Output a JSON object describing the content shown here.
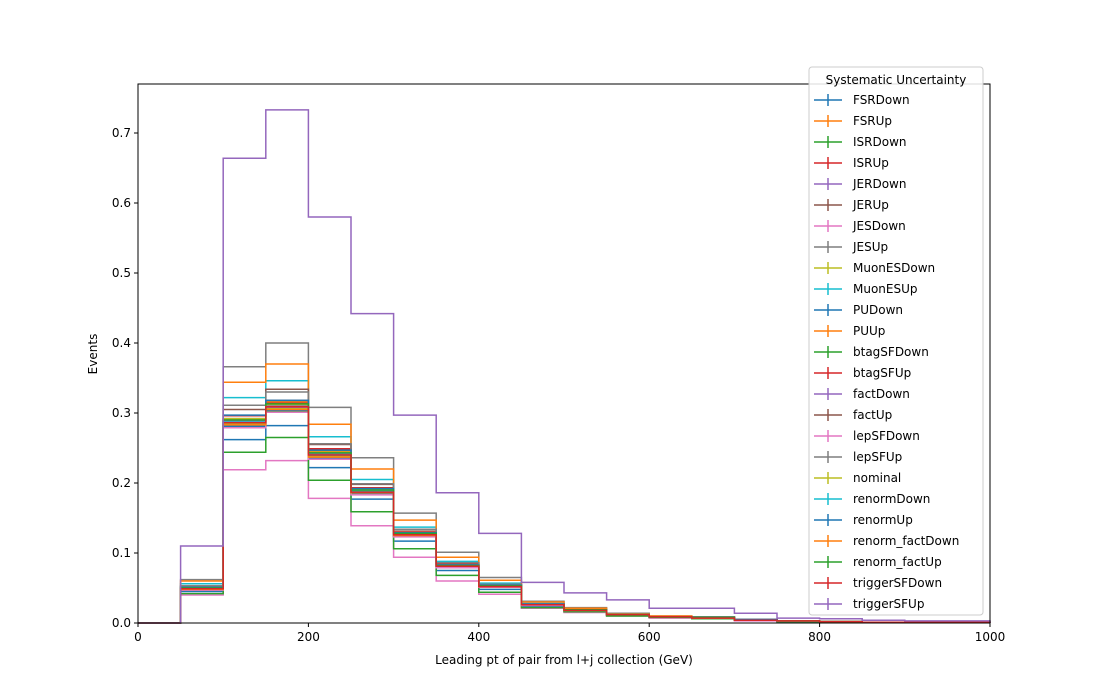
{
  "chart_data": {
    "type": "line",
    "style": "step-histogram",
    "xlabel": "Leading pt of pair from l+j collection (GeV)",
    "ylabel": "Events",
    "xlim": [
      0,
      1000
    ],
    "ylim": [
      0,
      0.77
    ],
    "xticks": [
      0,
      200,
      400,
      600,
      800,
      1000
    ],
    "yticks": [
      0.0,
      0.1,
      0.2,
      0.3,
      0.4,
      0.5,
      0.6,
      0.7
    ],
    "grid": false,
    "legend": {
      "title": "Systematic Uncertainty",
      "placement": "top-right"
    },
    "bin_edges": [
      0,
      50,
      100,
      150,
      200,
      250,
      300,
      350,
      400,
      450,
      500,
      550,
      600,
      650,
      700,
      750,
      800,
      850,
      900,
      950,
      1000
    ],
    "series": [
      {
        "name": "FSRDown",
        "color": "#1f77b4",
        "values": [
          0,
          0.045,
          0.262,
          0.282,
          0.222,
          0.177,
          0.117,
          0.075,
          0.048,
          0.024,
          0.017,
          0.011,
          0.008,
          0.007,
          0.004,
          0.002,
          0.002,
          0.001,
          0.001,
          0.001
        ]
      },
      {
        "name": "FSRUp",
        "color": "#ff7f0e",
        "values": [
          0,
          0.053,
          0.291,
          0.316,
          0.246,
          0.193,
          0.129,
          0.083,
          0.054,
          0.027,
          0.019,
          0.012,
          0.009,
          0.008,
          0.005,
          0.003,
          0.002,
          0.001,
          0.001,
          0.001
        ]
      },
      {
        "name": "ISRDown",
        "color": "#2ca02c",
        "values": [
          0,
          0.048,
          0.281,
          0.303,
          0.236,
          0.185,
          0.124,
          0.08,
          0.052,
          0.026,
          0.018,
          0.012,
          0.009,
          0.007,
          0.004,
          0.003,
          0.002,
          0.001,
          0.001,
          0.001
        ]
      },
      {
        "name": "ISRUp",
        "color": "#d62728",
        "values": [
          0,
          0.049,
          0.288,
          0.31,
          0.241,
          0.189,
          0.127,
          0.082,
          0.053,
          0.026,
          0.019,
          0.012,
          0.009,
          0.008,
          0.004,
          0.003,
          0.002,
          0.001,
          0.001,
          0.001
        ]
      },
      {
        "name": "JERDown",
        "color": "#9467bd",
        "values": [
          0,
          0.048,
          0.285,
          0.308,
          0.239,
          0.187,
          0.126,
          0.081,
          0.052,
          0.026,
          0.018,
          0.012,
          0.009,
          0.007,
          0.004,
          0.003,
          0.002,
          0.001,
          0.001,
          0.001
        ]
      },
      {
        "name": "JERUp",
        "color": "#8c564b",
        "values": [
          0,
          0.05,
          0.292,
          0.318,
          0.247,
          0.193,
          0.13,
          0.084,
          0.054,
          0.027,
          0.019,
          0.012,
          0.009,
          0.008,
          0.005,
          0.003,
          0.002,
          0.001,
          0.001,
          0.001
        ]
      },
      {
        "name": "JESDown",
        "color": "#e377c2",
        "values": [
          0,
          0.04,
          0.219,
          0.232,
          0.178,
          0.139,
          0.094,
          0.06,
          0.041,
          0.021,
          0.015,
          0.01,
          0.007,
          0.006,
          0.003,
          0.002,
          0.002,
          0.001,
          0.001,
          0.001
        ]
      },
      {
        "name": "JESUp",
        "color": "#7f7f7f",
        "values": [
          0,
          0.062,
          0.366,
          0.4,
          0.308,
          0.236,
          0.157,
          0.101,
          0.065,
          0.031,
          0.022,
          0.014,
          0.01,
          0.009,
          0.005,
          0.003,
          0.002,
          0.001,
          0.001,
          0.001
        ]
      },
      {
        "name": "MuonESDown",
        "color": "#bcbd22",
        "values": [
          0,
          0.048,
          0.284,
          0.306,
          0.238,
          0.186,
          0.125,
          0.081,
          0.052,
          0.026,
          0.018,
          0.012,
          0.009,
          0.007,
          0.004,
          0.003,
          0.002,
          0.001,
          0.001,
          0.001
        ]
      },
      {
        "name": "MuonESUp",
        "color": "#17becf",
        "values": [
          0,
          0.056,
          0.322,
          0.346,
          0.266,
          0.205,
          0.137,
          0.088,
          0.057,
          0.028,
          0.02,
          0.013,
          0.009,
          0.008,
          0.005,
          0.003,
          0.002,
          0.001,
          0.001,
          0.001
        ]
      },
      {
        "name": "PUDown",
        "color": "#1f77b4",
        "values": [
          0,
          0.047,
          0.281,
          0.304,
          0.236,
          0.185,
          0.124,
          0.08,
          0.052,
          0.026,
          0.018,
          0.012,
          0.009,
          0.007,
          0.004,
          0.003,
          0.002,
          0.001,
          0.001,
          0.001
        ]
      },
      {
        "name": "PUUp",
        "color": "#ff7f0e",
        "values": [
          0,
          0.06,
          0.344,
          0.37,
          0.284,
          0.22,
          0.147,
          0.094,
          0.061,
          0.03,
          0.021,
          0.013,
          0.01,
          0.008,
          0.005,
          0.003,
          0.002,
          0.001,
          0.001,
          0.001
        ]
      },
      {
        "name": "btagSFDown",
        "color": "#2ca02c",
        "values": [
          0,
          0.042,
          0.244,
          0.265,
          0.204,
          0.159,
          0.106,
          0.068,
          0.044,
          0.022,
          0.016,
          0.01,
          0.008,
          0.006,
          0.004,
          0.002,
          0.002,
          0.001,
          0.001,
          0.001
        ]
      },
      {
        "name": "btagSFUp",
        "color": "#d62728",
        "values": [
          0,
          0.051,
          0.296,
          0.314,
          0.249,
          0.193,
          0.13,
          0.084,
          0.054,
          0.027,
          0.019,
          0.012,
          0.009,
          0.008,
          0.005,
          0.003,
          0.002,
          0.001,
          0.001,
          0.001
        ]
      },
      {
        "name": "factDown",
        "color": "#9467bd",
        "values": [
          0,
          0.049,
          0.289,
          0.311,
          0.242,
          0.189,
          0.127,
          0.082,
          0.053,
          0.026,
          0.019,
          0.012,
          0.009,
          0.008,
          0.004,
          0.003,
          0.002,
          0.001,
          0.001,
          0.001
        ]
      },
      {
        "name": "factUp",
        "color": "#8c564b",
        "values": [
          0,
          0.052,
          0.305,
          0.334,
          0.255,
          0.198,
          0.133,
          0.086,
          0.055,
          0.027,
          0.019,
          0.012,
          0.009,
          0.008,
          0.005,
          0.003,
          0.002,
          0.001,
          0.001,
          0.001
        ]
      },
      {
        "name": "lepSFDown",
        "color": "#e377c2",
        "values": [
          0,
          0.047,
          0.279,
          0.301,
          0.234,
          0.183,
          0.123,
          0.079,
          0.051,
          0.025,
          0.018,
          0.012,
          0.009,
          0.007,
          0.004,
          0.003,
          0.002,
          0.001,
          0.001,
          0.001
        ]
      },
      {
        "name": "lepSFUp",
        "color": "#7f7f7f",
        "values": [
          0,
          0.053,
          0.311,
          0.33,
          0.256,
          0.199,
          0.134,
          0.086,
          0.055,
          0.027,
          0.019,
          0.012,
          0.009,
          0.008,
          0.005,
          0.003,
          0.002,
          0.001,
          0.001,
          0.001
        ]
      },
      {
        "name": "nominal",
        "color": "#bcbd22",
        "values": [
          0,
          0.05,
          0.292,
          0.312,
          0.244,
          0.19,
          0.128,
          0.083,
          0.053,
          0.026,
          0.019,
          0.012,
          0.009,
          0.008,
          0.004,
          0.003,
          0.002,
          0.001,
          0.001,
          0.001
        ]
      },
      {
        "name": "renormDown",
        "color": "#17becf",
        "values": [
          0,
          0.049,
          0.287,
          0.309,
          0.24,
          0.188,
          0.126,
          0.082,
          0.053,
          0.026,
          0.018,
          0.012,
          0.009,
          0.007,
          0.004,
          0.003,
          0.002,
          0.001,
          0.001,
          0.001
        ]
      },
      {
        "name": "renormUp",
        "color": "#1f77b4",
        "values": [
          0,
          0.051,
          0.297,
          0.318,
          0.247,
          0.192,
          0.129,
          0.083,
          0.054,
          0.027,
          0.019,
          0.012,
          0.009,
          0.008,
          0.005,
          0.003,
          0.002,
          0.001,
          0.001,
          0.001
        ]
      },
      {
        "name": "renorm_factDown",
        "color": "#ff7f0e",
        "values": [
          0,
          0.048,
          0.283,
          0.305,
          0.237,
          0.186,
          0.125,
          0.081,
          0.052,
          0.026,
          0.018,
          0.012,
          0.009,
          0.007,
          0.004,
          0.003,
          0.002,
          0.001,
          0.001,
          0.001
        ]
      },
      {
        "name": "renorm_factUp",
        "color": "#2ca02c",
        "values": [
          0,
          0.05,
          0.29,
          0.313,
          0.243,
          0.19,
          0.128,
          0.082,
          0.053,
          0.026,
          0.019,
          0.012,
          0.009,
          0.008,
          0.004,
          0.003,
          0.002,
          0.001,
          0.001,
          0.001
        ]
      },
      {
        "name": "triggerSFDown",
        "color": "#d62728",
        "values": [
          0,
          0.049,
          0.286,
          0.309,
          0.24,
          0.187,
          0.126,
          0.081,
          0.052,
          0.026,
          0.018,
          0.012,
          0.009,
          0.007,
          0.004,
          0.003,
          0.002,
          0.001,
          0.001,
          0.001
        ]
      },
      {
        "name": "triggerSFUp",
        "color": "#9467bd",
        "values": [
          0,
          0.11,
          0.664,
          0.733,
          0.58,
          0.442,
          0.297,
          0.186,
          0.128,
          0.058,
          0.043,
          0.033,
          0.021,
          0.021,
          0.014,
          0.007,
          0.006,
          0.004,
          0.003,
          0.003
        ]
      }
    ]
  }
}
